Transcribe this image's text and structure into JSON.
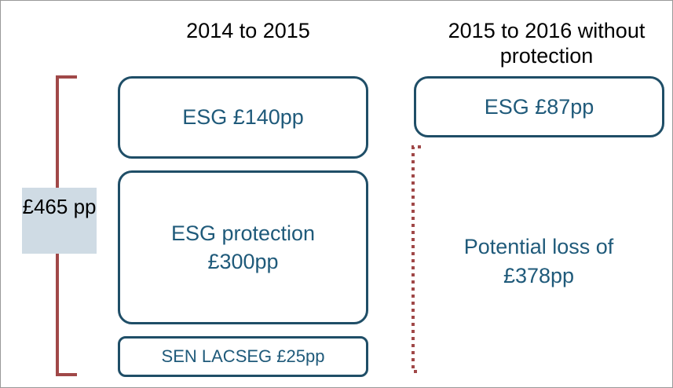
{
  "columns": [
    {
      "title": "2014 to 2015"
    },
    {
      "title": "2015  to 2016 without protection"
    }
  ],
  "boxes": [
    {
      "label": "ESG £140pp"
    },
    {
      "label": "ESG protection £300pp"
    },
    {
      "label": "SEN LACSEG £25pp"
    },
    {
      "label": "ESG £87pp"
    }
  ],
  "total": {
    "label": "£465 pp"
  },
  "loss": {
    "label": "Potential loss of £378pp"
  }
}
